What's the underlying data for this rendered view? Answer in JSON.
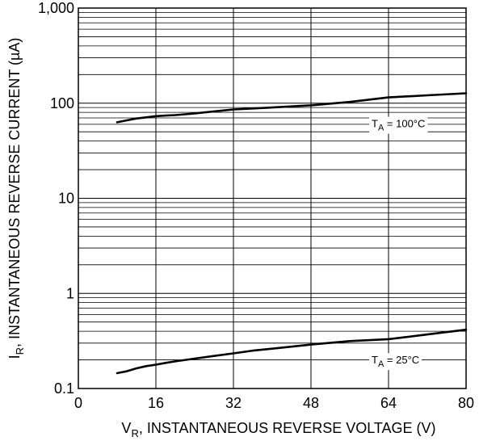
{
  "chart_data": {
    "type": "line",
    "x_scale": "linear",
    "y_scale": "log",
    "xlim": [
      0,
      80
    ],
    "ylim": [
      0.1,
      1000
    ],
    "x_ticks": [
      0,
      16,
      32,
      48,
      64,
      80
    ],
    "x_tick_labels": [
      "0",
      "16",
      "32",
      "48",
      "64",
      "80"
    ],
    "y_ticks": [
      0.1,
      1,
      10,
      100,
      1000
    ],
    "y_tick_labels": [
      "0.1",
      "1",
      "10",
      "100",
      "1,000"
    ],
    "grid": true,
    "xlabel": {
      "prefix": "V",
      "subscript": "R",
      "text": ", INSTANTANEOUS REVERSE VOLTAGE (V)"
    },
    "ylabel": {
      "prefix": "I",
      "subscript": "R",
      "text": ", INSTANTANEOUS REVERSE CURRENT (µA)"
    },
    "series": [
      {
        "label": {
          "prefix": "T",
          "subscript": "A",
          "text": " = 100°C"
        },
        "x": [
          8,
          10,
          12,
          14,
          16,
          18,
          20,
          24,
          28,
          32,
          36,
          40,
          48,
          56,
          64,
          72,
          80
        ],
        "y": [
          63,
          66,
          69,
          71,
          73,
          74,
          75,
          78,
          82,
          86,
          88,
          90,
          95,
          103,
          115,
          121,
          127
        ]
      },
      {
        "label": {
          "prefix": "T",
          "subscript": "A",
          "text": " = 25°C"
        },
        "x": [
          8,
          10,
          12,
          14,
          16,
          18,
          20,
          24,
          28,
          32,
          36,
          40,
          48,
          56,
          64,
          72,
          80
        ],
        "y": [
          0.145,
          0.152,
          0.163,
          0.172,
          0.178,
          0.186,
          0.193,
          0.206,
          0.22,
          0.234,
          0.25,
          0.262,
          0.29,
          0.315,
          0.33,
          0.37,
          0.415
        ]
      }
    ]
  }
}
